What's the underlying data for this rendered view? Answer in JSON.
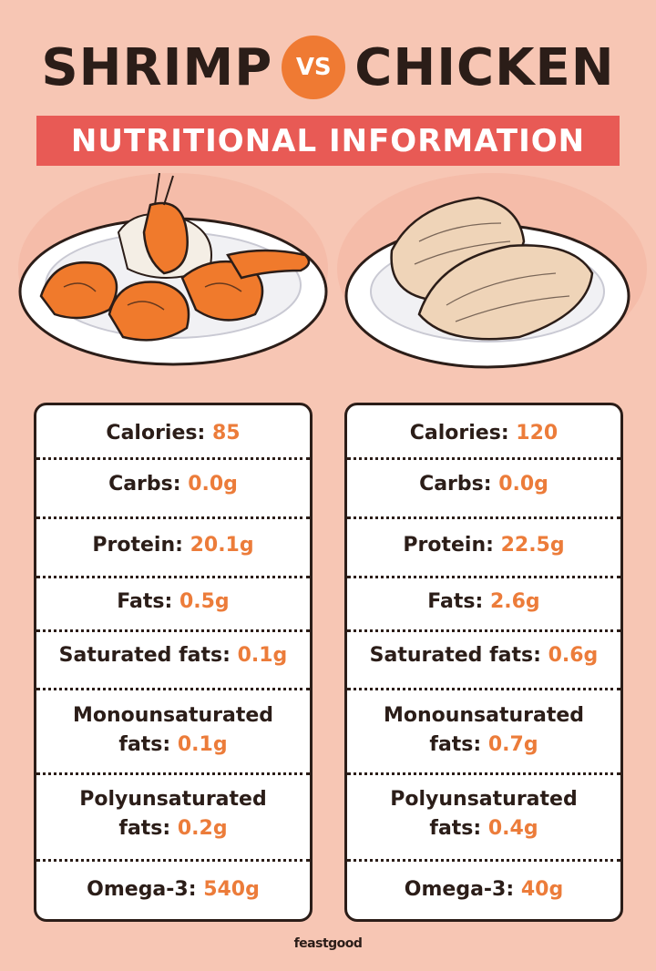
{
  "header": {
    "word_left": "SHRIMP",
    "vs": "VS",
    "word_right": "CHICKEN",
    "banner": "NUTRITIONAL INFORMATION"
  },
  "left_card": {
    "rows": [
      {
        "label": "Calories: ",
        "value": "85"
      },
      {
        "label": "Carbs: ",
        "value": "0.0g"
      },
      {
        "label": "Protein: ",
        "value": "20.1g"
      },
      {
        "label": "Fats: ",
        "value": "0.5g"
      },
      {
        "label": "Saturated fats: ",
        "value": "0.1g"
      },
      {
        "label": "Monounsaturated",
        "label2": "fats: ",
        "value": "0.1g"
      },
      {
        "label": "Polyunsaturated",
        "label2": "fats: ",
        "value": "0.2g"
      },
      {
        "label": "Omega-3: ",
        "value": "540g"
      }
    ]
  },
  "right_card": {
    "rows": [
      {
        "label": "Calories: ",
        "value": "120"
      },
      {
        "label": "Carbs: ",
        "value": "0.0g"
      },
      {
        "label": "Protein: ",
        "value": "22.5g"
      },
      {
        "label": "Fats: ",
        "value": "2.6g"
      },
      {
        "label": "Saturated fats: ",
        "value": "0.6g"
      },
      {
        "label": "Monounsaturated",
        "label2": "fats: ",
        "value": "0.7g"
      },
      {
        "label": "Polyunsaturated",
        "label2": "fats: ",
        "value": "0.4g"
      },
      {
        "label": "Omega-3: ",
        "value": "40g"
      }
    ]
  },
  "footer": {
    "brand": "feastgood"
  },
  "colors": {
    "background": "#f7c6b4",
    "banner": "#e85a55",
    "accent": "#ec7c3a",
    "dark": "#2b1d18"
  }
}
